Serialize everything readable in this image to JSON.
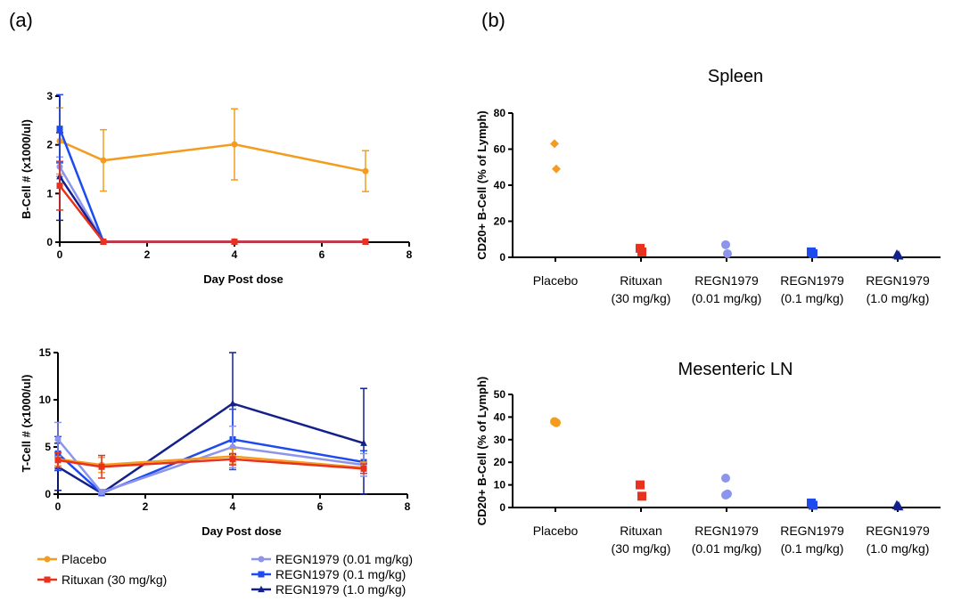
{
  "panels": {
    "a": "(a)",
    "b": "(b)"
  },
  "legend": [
    {
      "label": "Placebo",
      "color": "#F39C1F"
    },
    {
      "label": "Rituxan (30 mg/kg)",
      "color": "#E8321E"
    },
    {
      "label": "REGN1979 (0.01 mg/kg)",
      "color": "#8C94EC"
    },
    {
      "label": "REGN1979 (0.1 mg/kg)",
      "color": "#1E4BEE"
    },
    {
      "label": "REGN1979 (1.0 mg/kg)",
      "color": "#13208A"
    }
  ],
  "colors": {
    "Placebo": "#F39C1F",
    "Rituxan": "#E8321E",
    "REGN1979_001": "#8C94EC",
    "REGN1979_01": "#1E4BEE",
    "REGN1979_10": "#13208A"
  },
  "chart_data": [
    {
      "id": "bcell",
      "type": "line",
      "title": "",
      "xlabel": "Day Post dose",
      "ylabel": "B-Cell # (x1000/ul)",
      "xlim": [
        0,
        8
      ],
      "ylim": [
        0,
        3
      ],
      "xticks": [
        "0",
        "2",
        "4",
        "6",
        "8"
      ],
      "yticks": [
        "0",
        "1",
        "2",
        "3"
      ],
      "x": [
        0,
        1,
        4,
        7
      ],
      "series": [
        {
          "name": "Placebo",
          "color": "#F39C1F",
          "marker": "circle",
          "values": [
            2.08,
            1.68,
            2.01,
            1.46
          ],
          "err": [
            0.68,
            0.63,
            0.73,
            0.42
          ]
        },
        {
          "name": "REGN1979 (0.01 mg/kg)",
          "color": "#8C94EC",
          "marker": "circle",
          "values": [
            1.55,
            0.01,
            0.01,
            0.01
          ],
          "err": [
            0.2,
            0,
            0,
            0
          ]
        },
        {
          "name": "REGN1979 (1.0 mg/kg)",
          "color": "#13208A",
          "marker": "triangle",
          "values": [
            1.35,
            0.01,
            0.01,
            0.01
          ],
          "err": [
            0.9,
            0,
            0,
            0
          ]
        },
        {
          "name": "REGN1979 (0.1 mg/kg)",
          "color": "#1E4BEE",
          "marker": "square",
          "values": [
            2.33,
            0.01,
            0.01,
            0.01
          ],
          "err": [
            0.7,
            0,
            0,
            0
          ]
        },
        {
          "name": "Rituxan (30 mg/kg)",
          "color": "#E8321E",
          "marker": "square",
          "values": [
            1.16,
            0.01,
            0.01,
            0.01
          ],
          "err": [
            0.5,
            0,
            0,
            0
          ]
        }
      ]
    },
    {
      "id": "tcell",
      "type": "line",
      "title": "",
      "xlabel": "Day Post dose",
      "ylabel": "T-Cell # (x1000/ul)",
      "xlim": [
        0,
        8
      ],
      "ylim": [
        0,
        15
      ],
      "xticks": [
        "0",
        "2",
        "4",
        "6",
        "8"
      ],
      "yticks": [
        "0",
        "5",
        "10",
        "15"
      ],
      "x": [
        0,
        1,
        4,
        7
      ],
      "series": [
        {
          "name": "REGN1979 (1.0 mg/kg)",
          "color": "#13208A",
          "marker": "triangle",
          "values": [
            2.9,
            0.1,
            9.6,
            5.4
          ],
          "err": [
            2.5,
            0.3,
            5.4,
            5.8
          ]
        },
        {
          "name": "REGN1979 (0.1 mg/kg)",
          "color": "#1E4BEE",
          "marker": "square",
          "values": [
            4.3,
            0.1,
            5.8,
            3.4
          ],
          "err": [
            1.8,
            0.3,
            3.2,
            1.2
          ]
        },
        {
          "name": "REGN1979 (0.01 mg/kg)",
          "color": "#8C94EC",
          "marker": "circle",
          "values": [
            5.8,
            0.2,
            5.0,
            3.1
          ],
          "err": [
            1.8,
            0.3,
            2.2,
            1.2
          ]
        },
        {
          "name": "Placebo",
          "color": "#F39C1F",
          "marker": "circle",
          "values": [
            3.7,
            3.1,
            4.0,
            2.8
          ],
          "err": [
            0.7,
            0.8,
            0.8,
            0.6
          ]
        },
        {
          "name": "Rituxan (30 mg/kg)",
          "color": "#E8321E",
          "marker": "square",
          "values": [
            3.6,
            2.9,
            3.7,
            2.7
          ],
          "err": [
            0.8,
            1.2,
            0.6,
            0.5
          ]
        }
      ]
    },
    {
      "id": "spleen",
      "type": "scatter",
      "title": "Spleen",
      "ylabel": "CD20+ B-Cell (% of Lymph)",
      "ylim": [
        0,
        80
      ],
      "yticks": [
        "0",
        "20",
        "40",
        "60",
        "80"
      ],
      "categories": [
        [
          "Placebo"
        ],
        [
          "Rituxan",
          "(30 mg/kg)"
        ],
        [
          "REGN1979",
          "(0.01 mg/kg)"
        ],
        [
          "REGN1979",
          "(0.1 mg/kg)"
        ],
        [
          "REGN1979",
          "(1.0 mg/kg)"
        ]
      ],
      "groups": [
        {
          "color": "#F39C1F",
          "marker": "diamond",
          "values": [
            63,
            49
          ]
        },
        {
          "color": "#E8321E",
          "marker": "square",
          "values": [
            5,
            3
          ]
        },
        {
          "color": "#8C94EC",
          "marker": "circle",
          "values": [
            7,
            2
          ]
        },
        {
          "color": "#1E4BEE",
          "marker": "square",
          "values": [
            3,
            2
          ]
        },
        {
          "color": "#13208A",
          "marker": "triangle",
          "values": [
            1.5,
            1
          ]
        }
      ]
    },
    {
      "id": "mesenteric",
      "type": "scatter",
      "title": "Mesenteric LN",
      "ylabel": "CD20+ B-Cell (% of Lymph)",
      "ylim": [
        0,
        50
      ],
      "yticks": [
        "0",
        "10",
        "20",
        "30",
        "40",
        "50"
      ],
      "categories": [
        [
          "Placebo"
        ],
        [
          "Rituxan",
          "(30 mg/kg)"
        ],
        [
          "REGN1979",
          "(0.01 mg/kg)"
        ],
        [
          "REGN1979",
          "(0.1 mg/kg)"
        ],
        [
          "REGN1979",
          "(1.0 mg/kg)"
        ]
      ],
      "groups": [
        {
          "color": "#F39C1F",
          "marker": "circle",
          "values": [
            38,
            37.5
          ]
        },
        {
          "color": "#E8321E",
          "marker": "square",
          "values": [
            10,
            5
          ]
        },
        {
          "color": "#8C94EC",
          "marker": "circle",
          "values": [
            13,
            6,
            5.5
          ]
        },
        {
          "color": "#1E4BEE",
          "marker": "square",
          "values": [
            2,
            1
          ]
        },
        {
          "color": "#13208A",
          "marker": "triangle",
          "values": [
            1,
            0.5
          ]
        }
      ]
    }
  ]
}
